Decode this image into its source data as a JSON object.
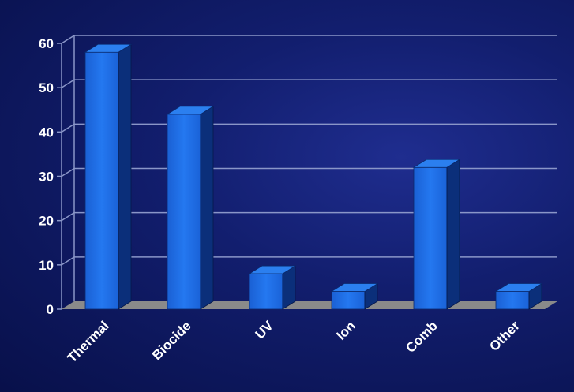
{
  "chart_data": {
    "type": "bar",
    "title": "",
    "xlabel": "",
    "ylabel": "",
    "categories": [
      "Thermal",
      "Biocide",
      "UV",
      "Ion",
      "Comb",
      "Other"
    ],
    "values": [
      58,
      44,
      8,
      4,
      32,
      4
    ],
    "ylim": [
      0,
      60
    ],
    "yticks": [
      "0",
      "10",
      "20",
      "30",
      "40",
      "50",
      "60"
    ],
    "grid": true,
    "legend": "none",
    "style": "3d",
    "colors": {
      "bar_front": "#1e6fe6",
      "bar_side": "#0b2f7a",
      "bar_top": "#2b7fef",
      "floor": "#8a8a8a",
      "grid": "#8a96c8",
      "text": "#ffffff"
    }
  }
}
